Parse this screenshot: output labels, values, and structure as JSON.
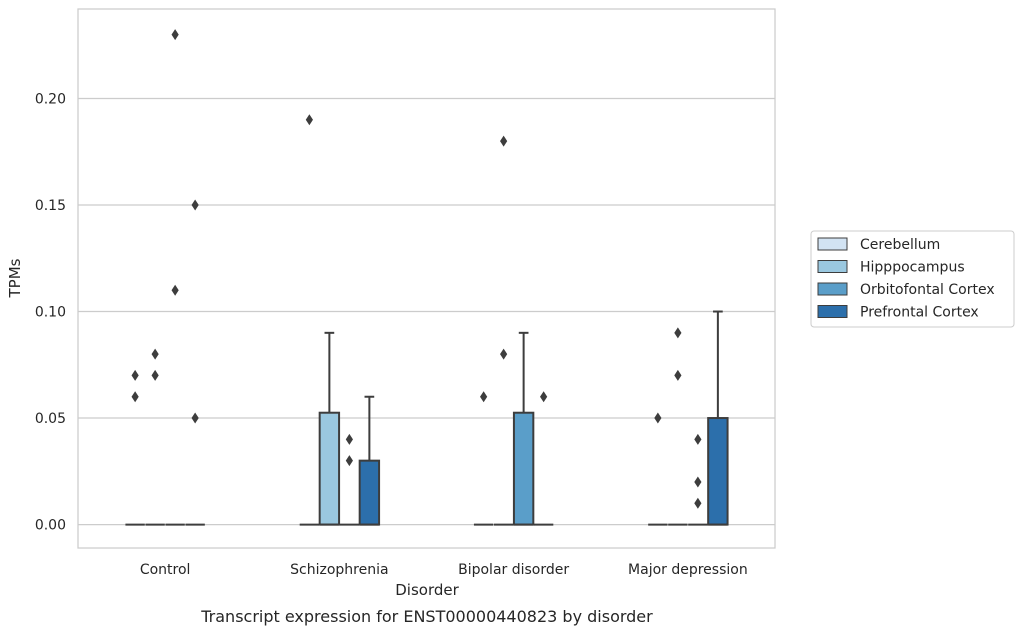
{
  "chart_data": {
    "type": "box",
    "caption": "Transcript expression for ENST00000440823 by disorder",
    "xlabel": "Disorder",
    "ylabel": "TPMs",
    "ylim": [
      -0.011,
      0.242
    ],
    "yticks": [
      0.0,
      0.05,
      0.1,
      0.15,
      0.2
    ],
    "ytick_labels": [
      "0.00",
      "0.05",
      "0.10",
      "0.15",
      "0.20"
    ],
    "categories": [
      "Control",
      "Schizophrenia",
      "Bipolar disorder",
      "Major depression"
    ],
    "grid": "horizontal",
    "legend_position": "right",
    "series": [
      {
        "name": "Cerebellum",
        "color": "#d2e3f3"
      },
      {
        "name": "Hipppocampus",
        "color": "#9ac8e0"
      },
      {
        "name": "Orbitofontal Cortex",
        "color": "#5a9ec9"
      },
      {
        "name": "Prefrontal Cortex",
        "color": "#2c6fab"
      }
    ],
    "boxes": [
      {
        "category": "Control",
        "series": "Cerebellum",
        "q1": 0,
        "median": 0,
        "q3": 0,
        "whisker_low": 0,
        "whisker_high": 0,
        "outliers": [
          0.06,
          0.07
        ]
      },
      {
        "category": "Control",
        "series": "Hipppocampus",
        "q1": 0,
        "median": 0,
        "q3": 0,
        "whisker_low": 0,
        "whisker_high": 0,
        "outliers": [
          0.07,
          0.08
        ]
      },
      {
        "category": "Control",
        "series": "Orbitofontal Cortex",
        "q1": 0,
        "median": 0,
        "q3": 0,
        "whisker_low": 0,
        "whisker_high": 0,
        "outliers": [
          0.11,
          0.23
        ]
      },
      {
        "category": "Control",
        "series": "Prefrontal Cortex",
        "q1": 0,
        "median": 0,
        "q3": 0,
        "whisker_low": 0,
        "whisker_high": 0,
        "outliers": [
          0.05,
          0.15
        ]
      },
      {
        "category": "Schizophrenia",
        "series": "Cerebellum",
        "q1": 0,
        "median": 0,
        "q3": 0,
        "whisker_low": 0,
        "whisker_high": 0,
        "outliers": [
          0.19
        ]
      },
      {
        "category": "Schizophrenia",
        "series": "Hipppocampus",
        "q1": 0,
        "median": 0,
        "q3": 0.0525,
        "whisker_low": 0,
        "whisker_high": 0.09,
        "outliers": []
      },
      {
        "category": "Schizophrenia",
        "series": "Orbitofontal Cortex",
        "q1": 0,
        "median": 0,
        "q3": 0,
        "whisker_low": 0,
        "whisker_high": 0,
        "outliers": [
          0.03,
          0.04
        ]
      },
      {
        "category": "Schizophrenia",
        "series": "Prefrontal Cortex",
        "q1": 0,
        "median": 0,
        "q3": 0.03,
        "whisker_low": 0,
        "whisker_high": 0.06,
        "outliers": []
      },
      {
        "category": "Bipolar disorder",
        "series": "Cerebellum",
        "q1": 0,
        "median": 0,
        "q3": 0,
        "whisker_low": 0,
        "whisker_high": 0,
        "outliers": [
          0.06
        ]
      },
      {
        "category": "Bipolar disorder",
        "series": "Hipppocampus",
        "q1": 0,
        "median": 0,
        "q3": 0,
        "whisker_low": 0,
        "whisker_high": 0,
        "outliers": [
          0.08,
          0.18
        ]
      },
      {
        "category": "Bipolar disorder",
        "series": "Orbitofontal Cortex",
        "q1": 0,
        "median": 0,
        "q3": 0.0525,
        "whisker_low": 0,
        "whisker_high": 0.09,
        "outliers": []
      },
      {
        "category": "Bipolar disorder",
        "series": "Prefrontal Cortex",
        "q1": 0,
        "median": 0,
        "q3": 0,
        "whisker_low": 0,
        "whisker_high": 0,
        "outliers": [
          0.06
        ]
      },
      {
        "category": "Major depression",
        "series": "Cerebellum",
        "q1": 0,
        "median": 0,
        "q3": 0,
        "whisker_low": 0,
        "whisker_high": 0,
        "outliers": [
          0.05
        ]
      },
      {
        "category": "Major depression",
        "series": "Hipppocampus",
        "q1": 0,
        "median": 0,
        "q3": 0,
        "whisker_low": 0,
        "whisker_high": 0,
        "outliers": [
          0.07,
          0.09
        ]
      },
      {
        "category": "Major depression",
        "series": "Orbitofontal Cortex",
        "q1": 0,
        "median": 0,
        "q3": 0,
        "whisker_low": 0,
        "whisker_high": 0,
        "outliers": [
          0.01,
          0.02,
          0.04
        ]
      },
      {
        "category": "Major depression",
        "series": "Prefrontal Cortex",
        "q1": 0,
        "median": 0,
        "q3": 0.05,
        "whisker_low": 0,
        "whisker_high": 0.1,
        "outliers": []
      }
    ]
  }
}
